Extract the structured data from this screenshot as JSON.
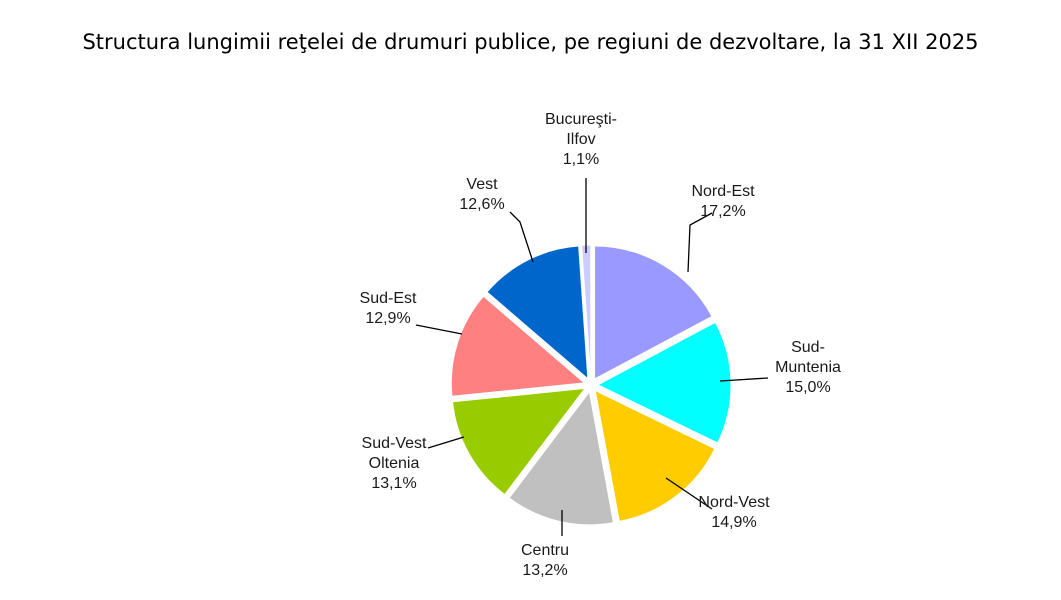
{
  "chart_data": {
    "type": "pie",
    "title": "Structura lungimii reţelei de drumuri publice, pe regiuni de dezvoltare, la 31 XII 2025",
    "slices": [
      {
        "key": "nord-est",
        "lines": [
          "Nord-Est",
          "17,2%"
        ],
        "value": 17.2,
        "color": "#9999ff"
      },
      {
        "key": "sud-muntenia",
        "lines": [
          "Sud-",
          "Muntenia",
          "15,0%"
        ],
        "value": 15.0,
        "color": "#00ffff"
      },
      {
        "key": "nord-vest",
        "lines": [
          "Nord-Vest",
          "14,9%"
        ],
        "value": 14.9,
        "color": "#ffcc00"
      },
      {
        "key": "centru",
        "lines": [
          "Centru",
          "13,2%"
        ],
        "value": 13.2,
        "color": "#c0c0c0"
      },
      {
        "key": "sud-vest-oltenia",
        "lines": [
          "Sud-Vest",
          "Oltenia",
          "13,1%"
        ],
        "value": 13.1,
        "color": "#99cc00"
      },
      {
        "key": "sud-est",
        "lines": [
          "Sud-Est",
          "12,9%"
        ],
        "value": 12.9,
        "color": "#ff8080"
      },
      {
        "key": "vest",
        "lines": [
          "Vest",
          "12,6%"
        ],
        "value": 12.6,
        "color": "#0066cc"
      },
      {
        "key": "bucuresti-ilfov",
        "lines": [
          "Bucureşti-",
          "Ilfov",
          "1,1%"
        ],
        "value": 1.1,
        "color": "#ccccff"
      }
    ]
  }
}
